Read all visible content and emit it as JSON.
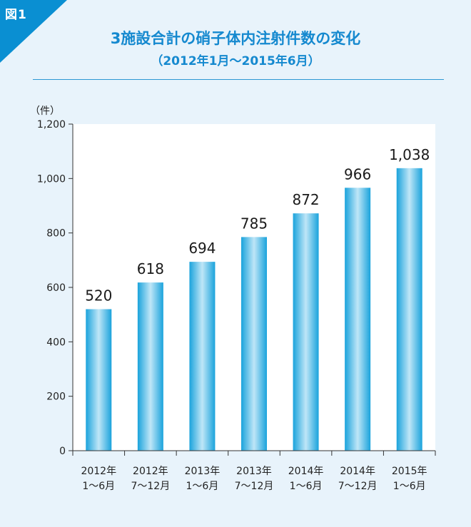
{
  "figure": {
    "badge": "図1",
    "title": "3施設合計の硝子体内注射件数の変化",
    "subtitle": "（2012年1月〜2015年6月）"
  },
  "colors": {
    "background": "#e8f3fb",
    "accent": "#1589cf",
    "bar_edge": "#1aa3dc",
    "bar_center": "#bfe6f7"
  },
  "chart_data": {
    "type": "bar",
    "title": "3施設合計の硝子体内注射件数の変化",
    "subtitle": "（2012年1月〜2015年6月）",
    "unit": "（件）",
    "categories": [
      [
        "2012年",
        "1〜6月"
      ],
      [
        "2012年",
        "7〜12月"
      ],
      [
        "2013年",
        "1〜6月"
      ],
      [
        "2013年",
        "7〜12月"
      ],
      [
        "2014年",
        "1〜6月"
      ],
      [
        "2014年",
        "7〜12月"
      ],
      [
        "2015年",
        "1〜6月"
      ]
    ],
    "values": [
      520,
      618,
      694,
      785,
      872,
      966,
      1038
    ],
    "value_labels": [
      "520",
      "618",
      "694",
      "785",
      "872",
      "966",
      "1,038"
    ],
    "ylim": [
      0,
      1200
    ],
    "yticks": [
      0,
      200,
      400,
      600,
      800,
      1000,
      1200
    ],
    "ytick_labels": [
      "0",
      "200",
      "400",
      "600",
      "800",
      "1,000",
      "1,200"
    ],
    "grid": false,
    "legend": "none"
  }
}
